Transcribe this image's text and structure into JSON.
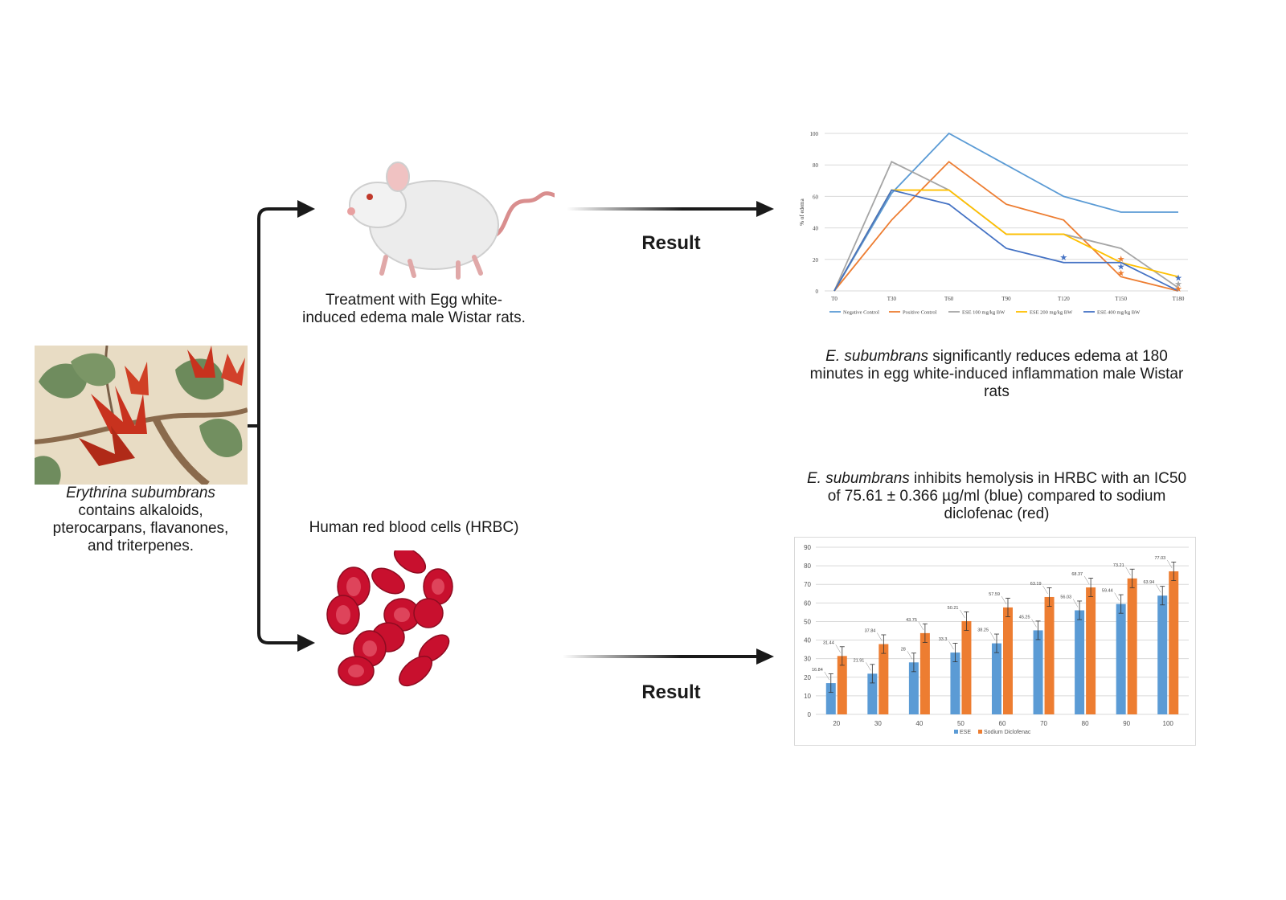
{
  "plant": {
    "species": "Erythrina subumbrans",
    "rest_line1": "contains a",
    "rest_a": "lkaloids,",
    "line2": "pterocarpans, flavanones,",
    "line3": "and triterpenes."
  },
  "rat": {
    "caption_line1": "Treatment with Egg white-",
    "caption_line2": "induced edema male Wistar rats."
  },
  "rbc": {
    "caption": "Human red blood cells (HRBC)"
  },
  "result_label": "Result",
  "edema_finding": {
    "species": "E. subumbrans",
    "text_line1": " significantly reduces edema at 180",
    "text_line2": "minutes in egg white-induced inflammation male Wistar",
    "text_line3": "rats"
  },
  "hemolysis_finding": {
    "species": "E. subumbrans",
    "text_line1": " inhibits hemolysis in HRBC with an IC50",
    "text_line2": "of 75.61 ± 0.366 µg/ml (blue) compared to sodium",
    "text_line3": "diclofenac (red)"
  },
  "colors": {
    "arrow": "#1a1a1a",
    "blue": "#5b9bd5",
    "orange": "#ed7d31",
    "gray": "#a5a5a5",
    "yellow": "#ffc000",
    "darkblue": "#4472c4",
    "rbc": "#c8102e"
  },
  "chart_data": [
    {
      "type": "line",
      "title": "",
      "xlabel": "",
      "ylabel": "% of edema",
      "x": [
        "T0",
        "T30",
        "T60",
        "T90",
        "T120",
        "T150",
        "T180"
      ],
      "ylim": [
        0,
        100
      ],
      "yticks": [
        0,
        20,
        40,
        60,
        80,
        100
      ],
      "grid": true,
      "legend": "bottom",
      "series": [
        {
          "name": "Negative Control",
          "color": "#5b9bd5",
          "values": [
            0,
            62,
            100,
            80,
            60,
            50,
            50
          ]
        },
        {
          "name": "Positive Control",
          "color": "#ed7d31",
          "values": [
            0,
            45,
            82,
            55,
            45,
            9,
            0
          ]
        },
        {
          "name": "ESE 100 mg/kg BW",
          "color": "#a5a5a5",
          "values": [
            0,
            82,
            64,
            36,
            36,
            27,
            2
          ]
        },
        {
          "name": "ESE 200 mg/kg BW",
          "color": "#ffc000",
          "values": [
            0,
            64,
            64,
            36,
            36,
            18,
            9
          ]
        },
        {
          "name": "ESE 400 mg/kg BW",
          "color": "#4472c4",
          "values": [
            0,
            64,
            55,
            27,
            18,
            18,
            0
          ]
        }
      ],
      "significance_markers": [
        {
          "x": "T120",
          "y": 21,
          "color": "#4472c4"
        },
        {
          "x": "T150",
          "y": 20,
          "color": "#ed7d31"
        },
        {
          "x": "T150",
          "y": 15,
          "color": "#4472c4"
        },
        {
          "x": "T150",
          "y": 11,
          "color": "#ed7d31"
        },
        {
          "x": "T180",
          "y": 8,
          "color": "#4472c4"
        },
        {
          "x": "T180",
          "y": 4,
          "color": "#a5a5a5"
        },
        {
          "x": "T180",
          "y": 1,
          "color": "#ed7d31"
        }
      ]
    },
    {
      "type": "bar",
      "title": "",
      "xlabel": "",
      "ylabel": "",
      "categories": [
        "20",
        "30",
        "40",
        "50",
        "60",
        "70",
        "80",
        "90",
        "100"
      ],
      "ylim": [
        0,
        90
      ],
      "yticks": [
        0,
        10,
        20,
        30,
        40,
        50,
        60,
        70,
        80,
        90
      ],
      "grid": true,
      "legend": "bottom",
      "series": [
        {
          "name": "ESE",
          "color": "#5b9bd5",
          "values": [
            16.84,
            21.91,
            28,
            33.3,
            38.25,
            45.25,
            56.03,
            59.44,
            63.94
          ],
          "labels": [
            "16.84",
            "21.91",
            "28",
            "33.3",
            "38.25",
            "45.25",
            "56.03",
            "59.44",
            "63.94"
          ]
        },
        {
          "name": "Sodium Diclofenac",
          "color": "#ed7d31",
          "values": [
            31.44,
            37.84,
            43.75,
            50.21,
            57.59,
            63.19,
            68.37,
            73.21,
            77.03
          ],
          "labels": [
            "31.44",
            "37.84",
            "43.75",
            "50.21",
            "57.59",
            "63.19",
            "68.37",
            "73.21",
            "77.03"
          ]
        }
      ]
    }
  ]
}
